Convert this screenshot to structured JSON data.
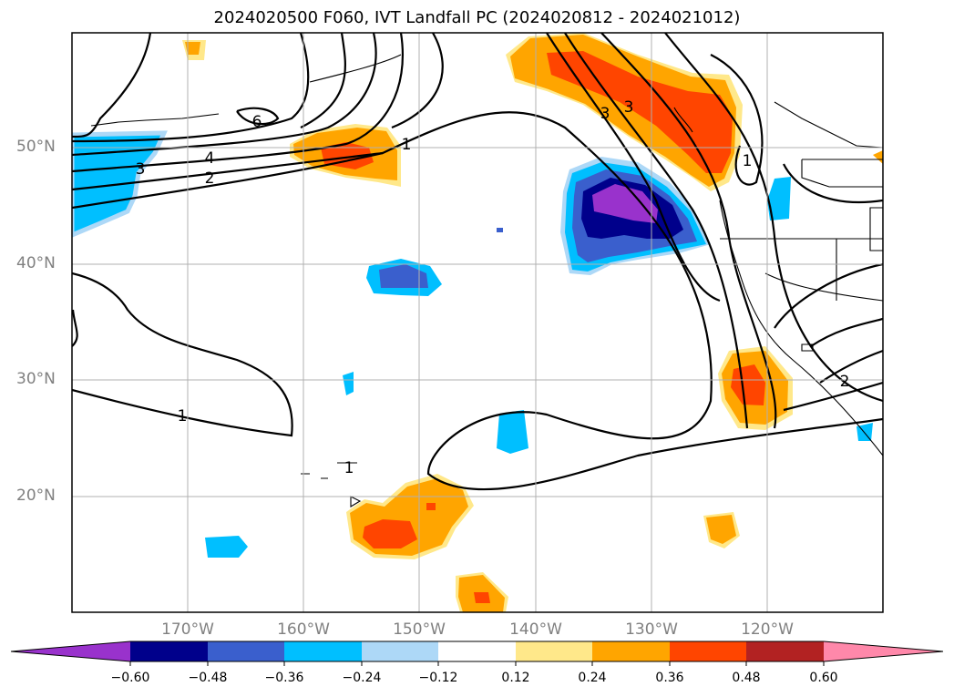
{
  "title": "2024020500 F060, IVT Landfall PC (2024020812 - 2024021012)",
  "lat_labels": [
    "50°N",
    "40°N",
    "30°N",
    "20°N"
  ],
  "lon_labels": [
    "170°W",
    "160°W",
    "150°W",
    "140°W",
    "130°W",
    "120°W"
  ],
  "contour_labels": [
    "6",
    "4",
    "3",
    "2",
    "1",
    "1",
    "1",
    "3",
    "3",
    "2",
    "1"
  ],
  "colorbar": {
    "ticks": [
      "−0.60",
      "−0.48",
      "−0.36",
      "−0.24",
      "−0.12",
      "0.12",
      "0.24",
      "0.36",
      "0.48",
      "0.60"
    ],
    "colors": [
      "#9932cc",
      "#00008b",
      "#3a5fcd",
      "#00bfff",
      "#add8f7",
      "#ffffff",
      "#ffe88a",
      "#ffa500",
      "#ff4500",
      "#b22222",
      "#ff88aa"
    ]
  }
}
